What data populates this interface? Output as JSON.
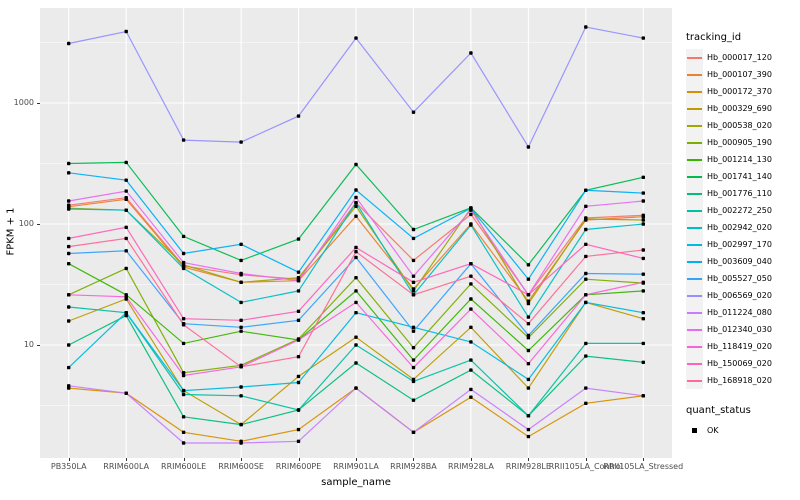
{
  "chart_data": {
    "type": "line",
    "title": "",
    "xlabel": "sample_name",
    "ylabel": "FPKM + 1",
    "y_scale": "log10",
    "ylim": [
      1.15,
      6100
    ],
    "y_ticks": [
      10,
      100,
      1000
    ],
    "y_minor_ticks": [
      3.162,
      31.62,
      316.2,
      3162
    ],
    "grid": "on",
    "panel_bg": "#EBEBEB",
    "grid_color": "#FFFFFF",
    "point_color": "#000000",
    "legend_position": "right",
    "legend_title": "tracking_id",
    "categories": [
      "PB350LA",
      "RRIM600LA",
      "RRIM600LE",
      "RRIM600SE",
      "RRIM600PE",
      "RRIM901LA",
      "RRIM928BA",
      "RRIM928LA",
      "RRIM928LE",
      "RRII105LA_Control",
      "RRII105LA_Stressed"
    ],
    "series": [
      {
        "name": "Hb_000017_120",
        "color": "#F8766D",
        "values": [
          143,
          165,
          45,
          38,
          35,
          150,
          50,
          120,
          26,
          112,
          118
        ]
      },
      {
        "name": "Hb_000107_390",
        "color": "#EA8331",
        "values": [
          139,
          160,
          44,
          33,
          34,
          116,
          29,
          100,
          23,
          108,
          115
        ]
      },
      {
        "name": "Hb_000172_370",
        "color": "#D89000",
        "values": [
          4.4,
          4.0,
          1.9,
          1.6,
          2.0,
          4.4,
          1.9,
          3.7,
          1.75,
          3.3,
          3.8
        ]
      },
      {
        "name": "Hb_000329_690",
        "color": "#C09B00",
        "values": [
          15.8,
          24,
          4.2,
          2.2,
          5.5,
          11.6,
          5.2,
          14,
          4.4,
          22.5,
          16.5
        ]
      },
      {
        "name": "Hb_000538_020",
        "color": "#A3A500",
        "values": [
          135,
          130,
          46,
          33,
          36,
          140,
          28,
          135,
          22,
          110,
          108
        ]
      },
      {
        "name": "Hb_000905_190",
        "color": "#7CAE00",
        "values": [
          26,
          43,
          5.9,
          6.8,
          11.2,
          36,
          9.5,
          32,
          11.5,
          35,
          32.5
        ]
      },
      {
        "name": "Hb_001214_130",
        "color": "#39B600",
        "values": [
          47,
          26,
          10.3,
          13,
          11,
          28,
          7.5,
          24,
          9,
          26,
          28
        ]
      },
      {
        "name": "Hb_001741_140",
        "color": "#00BB4E",
        "values": [
          316,
          323,
          79,
          50,
          75,
          310,
          90,
          136,
          46,
          190,
          243
        ]
      },
      {
        "name": "Hb_001776_110",
        "color": "#00BF7D",
        "values": [
          10,
          17.5,
          2.55,
          2.2,
          2.9,
          7.1,
          3.5,
          6.2,
          2.6,
          8.1,
          7.2
        ]
      },
      {
        "name": "Hb_002272_250",
        "color": "#00C1A3",
        "values": [
          20.6,
          18.5,
          3.9,
          3.8,
          2.9,
          10,
          5,
          7.5,
          2.6,
          10.3,
          10.3
        ]
      },
      {
        "name": "Hb_002942_020",
        "color": "#00BFC4",
        "values": [
          133,
          130,
          43,
          22.5,
          28,
          150,
          26,
          98,
          17,
          90,
          100
        ]
      },
      {
        "name": "Hb_002997_170",
        "color": "#00BAE0",
        "values": [
          6.5,
          18.5,
          4.2,
          4.5,
          4.9,
          18.5,
          14,
          10.6,
          5.2,
          22.5,
          18.5
        ]
      },
      {
        "name": "Hb_003609_040",
        "color": "#00B0F6",
        "values": [
          265,
          230,
          57,
          68,
          40,
          191,
          76,
          135,
          35,
          190,
          180
        ]
      },
      {
        "name": "Hb_005527_050",
        "color": "#35A2FF",
        "values": [
          57,
          60,
          15,
          14,
          16,
          53,
          13,
          47,
          12,
          39,
          38.5
        ]
      },
      {
        "name": "Hb_006569_020",
        "color": "#9590FF",
        "values": [
          3100,
          3900,
          494,
          475,
          780,
          3440,
          840,
          2590,
          433,
          4250,
          3440
        ]
      },
      {
        "name": "Hb_011224_080",
        "color": "#C77CFF",
        "values": [
          4.6,
          4.0,
          1.55,
          1.55,
          1.6,
          4.4,
          1.9,
          4.3,
          2.0,
          4.4,
          3.8
        ]
      },
      {
        "name": "Hb_012340_030",
        "color": "#E76BF3",
        "values": [
          155,
          187,
          48,
          39,
          34,
          166,
          37,
          130,
          26,
          140,
          155
        ]
      },
      {
        "name": "Hb_118419_020",
        "color": "#FA62DB",
        "values": [
          26,
          25,
          5.6,
          6.6,
          11,
          22.5,
          6.5,
          19.8,
          7,
          26,
          33
        ]
      },
      {
        "name": "Hb_150069_020",
        "color": "#FF62BC",
        "values": [
          76,
          94,
          16.5,
          16,
          19,
          64,
          33,
          47,
          26,
          68,
          52
        ]
      },
      {
        "name": "Hb_168918_020",
        "color": "#FF6A98",
        "values": [
          65,
          76,
          14.7,
          6.6,
          8,
          59,
          26,
          37,
          15,
          54,
          61
        ]
      }
    ],
    "quant_legend": {
      "title": "quant_status",
      "entries": [
        {
          "label": "OK",
          "shape": "black-square"
        }
      ]
    }
  }
}
